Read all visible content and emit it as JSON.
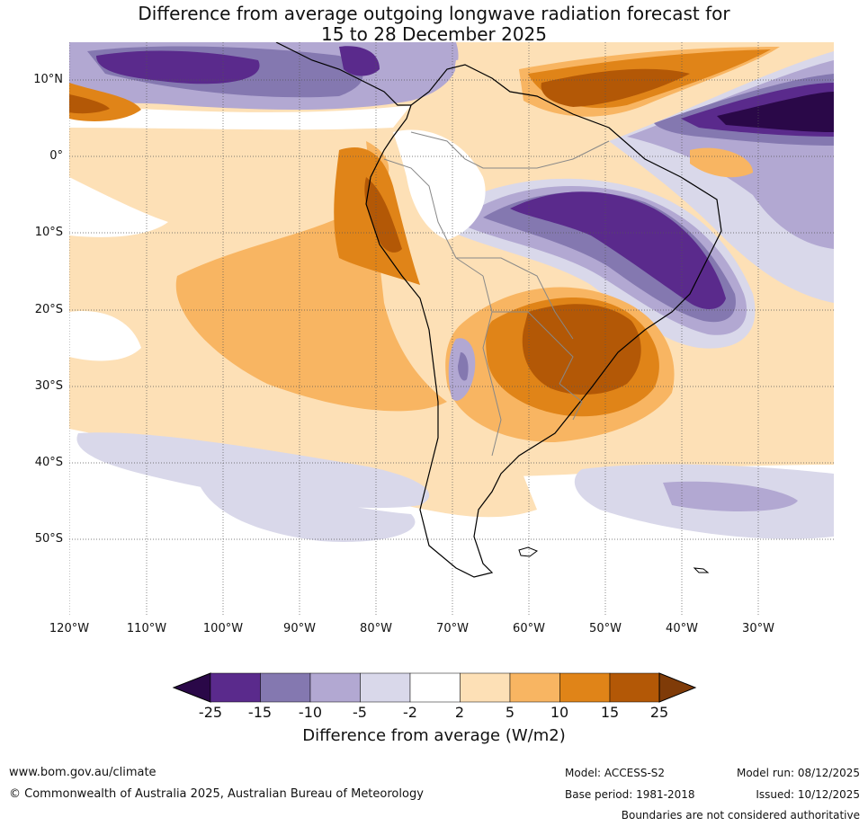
{
  "title": {
    "line1": "Difference from average outgoing longwave radiation forecast for",
    "line2": "15 to 28 December 2025"
  },
  "map": {
    "lat_labels": [
      "10°N",
      "0°",
      "10°S",
      "20°S",
      "30°S",
      "40°S",
      "50°S"
    ],
    "lon_labels": [
      "120°W",
      "110°W",
      "100°W",
      "90°W",
      "80°W",
      "70°W",
      "60°W",
      "50°W",
      "40°W",
      "30°W"
    ]
  },
  "colorbar": {
    "tick_labels": [
      "-25",
      "-15",
      "-10",
      "-5",
      "-2",
      "2",
      "5",
      "10",
      "15",
      "25"
    ],
    "colors": [
      "#2a0848",
      "#5a2a8c",
      "#8478b0",
      "#b2a8d2",
      "#d9d8ea",
      "#ffffff",
      "#fde0b6",
      "#f8b562",
      "#e08418",
      "#b35806",
      "#7f3b08"
    ],
    "title": "Difference from average (W/m2)"
  },
  "footer": {
    "website": "www.bom.gov.au/climate",
    "copyright": "© Commonwealth of Australia 2025, Australian Bureau of Meteorology",
    "model": "Model: ACCESS-S2",
    "base_period": "Base period: 1981-2018",
    "model_run": "Model run: 08/12/2025",
    "issued": "Issued: 10/12/2025",
    "disclaimer": "Boundaries are not considered authoritative"
  }
}
